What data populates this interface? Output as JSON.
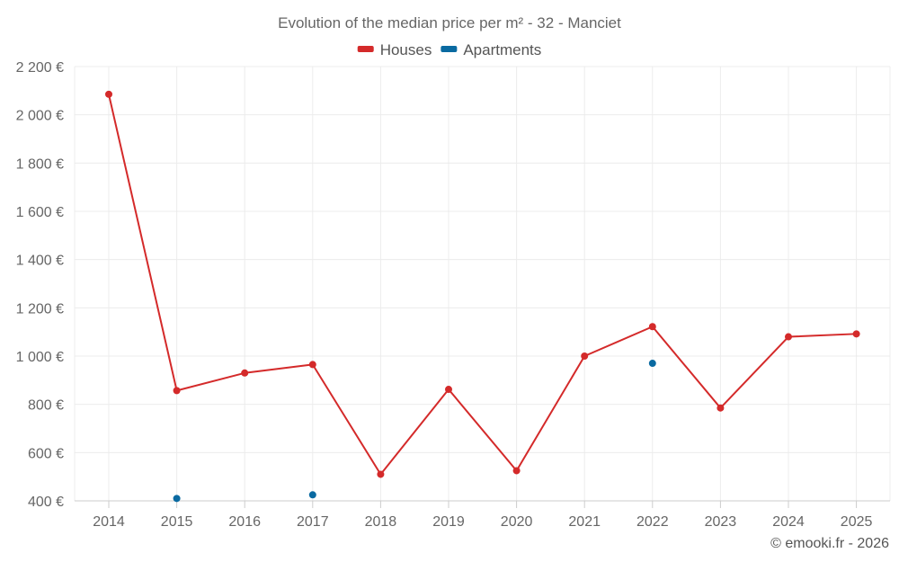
{
  "chart_data": {
    "type": "line",
    "title": "Evolution of the median price per m² - 32 - Manciet",
    "categories": [
      "2014",
      "2015",
      "2016",
      "2017",
      "2018",
      "2019",
      "2020",
      "2021",
      "2022",
      "2023",
      "2024",
      "2025"
    ],
    "ylim": [
      400,
      2200
    ],
    "yticks": [
      400,
      600,
      800,
      1000,
      1200,
      1400,
      1600,
      1800,
      2000,
      2200
    ],
    "ytick_labels": [
      "400 €",
      "600 €",
      "800 €",
      "1 000 €",
      "1 200 €",
      "1 400 €",
      "1 600 €",
      "1 800 €",
      "2 000 €",
      "2 200 €"
    ],
    "grid": true,
    "legend_position": "top-center",
    "series": [
      {
        "name": "Houses",
        "color": "#d42a2a",
        "style": "line",
        "values": [
          2085,
          857,
          930,
          965,
          510,
          862,
          525,
          1000,
          1122,
          785,
          1080,
          1092
        ]
      },
      {
        "name": "Apartments",
        "color": "#0a6aa1",
        "style": "points",
        "values": [
          null,
          410,
          null,
          425,
          null,
          null,
          null,
          null,
          970,
          null,
          null,
          null
        ]
      }
    ]
  },
  "credit": "© emooki.fr - 2026"
}
